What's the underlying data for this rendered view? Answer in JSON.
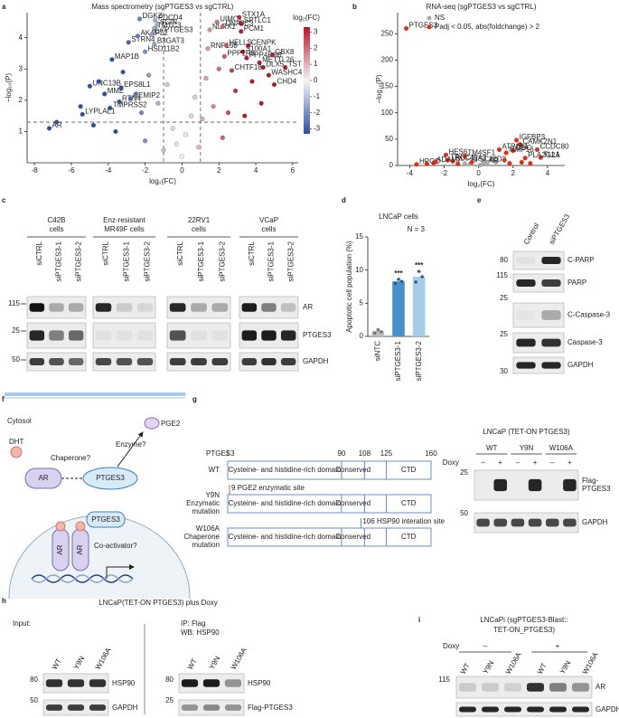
{
  "letters": [
    "a",
    "b",
    "c",
    "d",
    "e",
    "f",
    "g",
    "h",
    "i"
  ],
  "chart_data": [
    {
      "type": "scatter",
      "title": "Mass spectrometry (sgPTGES3 vs sgCTRL)",
      "xlabel": "log₂(FC)",
      "ylabel": "−log₁₀(P)",
      "xlim": [
        -8.4,
        6.3
      ],
      "ylim": [
        0,
        4.8
      ],
      "xticks": [
        -8,
        -6,
        -4,
        -2,
        0,
        2,
        4,
        6
      ],
      "yticks": [
        1,
        2,
        3,
        4
      ],
      "hlines": [
        1.3
      ],
      "vlines": [
        -1,
        1
      ],
      "colorbar": {
        "label": "log₂(FC)",
        "lim": [
          -3.3,
          3.3
        ],
        "ticks": [
          -3,
          -2,
          -1,
          0,
          1,
          2,
          3
        ],
        "colors": [
          "#2c4f9e",
          "#f4f4f4",
          "#b5172b"
        ]
      },
      "series": [
        {
          "x": [
            -7.2,
            -5.4,
            -3.9,
            -3.4,
            -4.2,
            -2.8,
            -3.3,
            -5.0,
            -3.8,
            -2.0,
            -2.9,
            -2.4,
            -2.3,
            -1.5,
            -1.35,
            -1.45,
            -1.65,
            -1.1,
            -1.5,
            1.9,
            3.1,
            3.2,
            1.5,
            2.2,
            3.2,
            1.4,
            2.4,
            3.6,
            3.3,
            2.3,
            3.5,
            4.2,
            4.9,
            5.6,
            2.7,
            4.4,
            4.7,
            5.0,
            -6.8,
            -5.5,
            -4.8,
            -4.5,
            -3.2,
            -2.5,
            -2.2,
            -1.8,
            -1.3,
            -0.8,
            -0.5,
            -0.3,
            0,
            0.2,
            0.5,
            0.7,
            1.1,
            1.3,
            1.7,
            2.0,
            2.5,
            2.9,
            3.4,
            3.8,
            4.3,
            -1.0,
            0.9,
            -2.0,
            2.2,
            -3.6
          ],
          "values": [
            1.1,
            1.55,
            1.75,
            1.95,
            2.2,
            2.05,
            2.4,
            2.45,
            3.3,
            3.55,
            3.85,
            4.05,
            4.6,
            4.3,
            4.4,
            4.55,
            4.1,
            4.15,
            3.8,
            4.5,
            4.65,
            4.45,
            4.25,
            4.35,
            4.2,
            3.65,
            3.75,
            3.75,
            3.55,
            3.4,
            3.35,
            3.2,
            3.45,
            3.05,
            2.95,
            3.05,
            2.8,
            2.5,
            1.3,
            1.8,
            1.2,
            2.6,
            2.9,
            2.2,
            1.6,
            2.8,
            1.9,
            2.5,
            1.1,
            0.6,
            0.2,
            0.9,
            1.5,
            2.1,
            1.4,
            2.7,
            1.8,
            3.0,
            1.6,
            2.3,
            1.5,
            2.6,
            1.9,
            0.4,
            0.5,
            0.7,
            0.8,
            1.0
          ],
          "labels": [
            "AR",
            "LYPLAL1",
            "TMPRSS2",
            "RTN4",
            "MME",
            "CEMIP2",
            "EPS8L1",
            "UNC13B",
            "MAP1B",
            "HSD11B2",
            "STRN4",
            "AKAP12",
            "DGKZ",
            "TMTC3",
            "SCIN",
            "PDCD4",
            "C9",
            "PTGES3",
            "B3GAT3",
            "UIMC1",
            "STX1A",
            "SPTLC1",
            "NLRX1",
            "DNAJC3",
            "PCM1",
            "RNF168",
            "HELLS",
            "CENPK",
            "S100A1",
            "PPP1R8",
            "PPP4R3B",
            "METTL26",
            "CBX8",
            "TST",
            "CHTF18",
            "DLX5",
            "WASHC4",
            "CHD4",
            null,
            null,
            null,
            null,
            null,
            null,
            null,
            null,
            null,
            null,
            null,
            null,
            null,
            null,
            null,
            null,
            null,
            null,
            null,
            null,
            null,
            null,
            null,
            null,
            null,
            null,
            null,
            null,
            null,
            null
          ]
        }
      ]
    },
    {
      "type": "scatter",
      "title": "RNA-seq (sgPTGES3 vs sgCTRL)",
      "xlabel": "log₂(FC)",
      "ylabel": "−log₁₀(P)",
      "xlim": [
        -4.7,
        5
      ],
      "ylim": [
        0,
        290
      ],
      "xticks": [
        -4,
        -2,
        0,
        2,
        4
      ],
      "yticks": [
        0,
        50,
        100,
        150,
        200,
        250
      ],
      "legend": "top-left",
      "series": [
        {
          "name": "NS",
          "color": "#aaaaaa",
          "x": [
            -0.5,
            0.3,
            0.8,
            -0.2,
            0.5,
            1.0,
            -0.8,
            0.1,
            0.4
          ],
          "values": [
            3,
            5,
            12,
            10,
            2,
            6,
            4,
            1,
            4
          ],
          "labels": [
            null,
            null,
            null,
            null,
            null,
            null,
            null,
            null,
            "AR"
          ]
        },
        {
          "name": "Padj < 0.05, abs(foldchange) > 2",
          "color": "#d7301f",
          "x": [
            -4.2,
            -1.9,
            -1.8,
            -0.8,
            -1.5,
            -2.6,
            -3.6,
            -0.4,
            2.2,
            2.4,
            3.4,
            1.2,
            2.0,
            1.6,
            3.6,
            2.7,
            -3.0,
            -2.5,
            1.5,
            2.5,
            3.0,
            1.8,
            -1.2
          ],
          "values": [
            260,
            20,
            10,
            18,
            8,
            5,
            2,
            6,
            48,
            40,
            30,
            30,
            28,
            24,
            15,
            14,
            3,
            7,
            10,
            6,
            4,
            4,
            3
          ],
          "labels": [
            "PTGES3",
            "HES6",
            "TRGC1",
            "TM4SF1",
            "SLC45A3",
            "ADAM7",
            "HPGD",
            "TSC22D3",
            "IGFBP3",
            "CAMK2N1",
            "CCDC80",
            "ATP1B1",
            "DDC",
            "MMP16",
            "TLL1",
            "PLA2G2A",
            null,
            null,
            null,
            null,
            null,
            null,
            null
          ]
        }
      ]
    },
    {
      "type": "bar",
      "title": "LNCaP cells",
      "note": "N = 3",
      "ylabel": "Apoptotic cell population (%)",
      "categories": [
        "siNTC",
        "siPTGES3-1",
        "siPTGES3-2"
      ],
      "values": [
        0.8,
        8.3,
        9.0
      ],
      "colors": [
        "#bdbdbd",
        "#4a90c8",
        "#a6cde8"
      ],
      "replicates": [
        [
          0.5,
          1.0,
          0.7
        ],
        [
          8.0,
          8.6,
          8.3
        ],
        [
          8.2,
          9.8,
          9.0
        ]
      ],
      "significance": [
        null,
        "***",
        "***"
      ],
      "ylim": [
        0,
        15
      ],
      "yticks": [
        0,
        5,
        10,
        15
      ]
    }
  ],
  "c": {
    "groups": [
      [
        "C42B",
        "cells"
      ],
      [
        "Enz-resistant",
        "MR49F cells"
      ],
      [
        "22RV1",
        "cells"
      ],
      [
        "VCaP",
        "cells"
      ]
    ],
    "lanes": [
      "siCTRL",
      "siPTGES3-1",
      "siPTGES3-2"
    ],
    "markers": [
      "115",
      "25",
      "50"
    ],
    "proteins": [
      "AR",
      "PTGES3",
      "GAPDH"
    ]
  },
  "e": {
    "lanes": [
      "Control",
      "siPTGES3"
    ],
    "markers": [
      "80",
      "115",
      "25",
      "25",
      "30"
    ],
    "proteins": [
      "C-PARP",
      "PARP",
      "C-Caspase-3",
      "Caspase-3",
      "GAPDH"
    ]
  },
  "f": {
    "cytosol": "Cytosol",
    "dht": "DHT",
    "pge2": "PGE2",
    "ar": "AR",
    "ptges3": "PTGES3",
    "chaperone": "Chaperone?",
    "enzyme": "Enzyme?",
    "ar_dimer": [
      "AR",
      "AR"
    ],
    "nuclear_ptges3": "PTGES3",
    "coactivator": "Co-activator?"
  },
  "g": {
    "protein": "PTGES3",
    "positions": [
      1,
      90,
      108,
      125,
      160
    ],
    "rows": [
      [
        "WT"
      ],
      [
        "Y9N",
        "Enzymatic",
        "mutation"
      ],
      [
        "W106A",
        "Chaperone",
        "mutation"
      ]
    ],
    "domains": [
      "Cysteine- and histidine-rich domain",
      "Conserved",
      "CTD"
    ],
    "sites": [
      "9 PGE2 enzymatic site",
      "106 HSP90 interation site"
    ],
    "blot": {
      "title": "LNCaP (TET-ON PTGES3)",
      "groups": [
        "WT",
        "Y9N",
        "W106A"
      ],
      "doxy": "Doxy",
      "signs": [
        "–",
        "+"
      ],
      "markers": [
        "25",
        "50"
      ],
      "proteins": [
        [
          "Flag-",
          "PTGES3"
        ],
        [
          "GAPDH"
        ]
      ]
    }
  },
  "h": {
    "title": "LNCaP(TET-ON PTGES3) plus Doxy",
    "input": "Input:",
    "ip": [
      "IP: Flag",
      "WB: HSP90"
    ],
    "lanes": [
      "WT",
      "Y9N",
      "W106A"
    ],
    "left": {
      "markers": [
        "80",
        "50"
      ],
      "proteins": [
        "HSP90",
        "GAPDH"
      ]
    },
    "right": {
      "markers": [
        "80",
        "25"
      ],
      "proteins": [
        "HSP90",
        "Flag-PTGES3"
      ]
    }
  },
  "i": {
    "title": [
      "LNCaPi (sgPTGES3-Blast::",
      "TET-ON_PTGES3)"
    ],
    "doxy": "Doxy",
    "signs": [
      "–",
      "+"
    ],
    "lanes": [
      "WT",
      "Y9N",
      "W106A"
    ],
    "markers": [
      "115"
    ],
    "proteins": [
      "AR",
      "GAPDH"
    ]
  }
}
